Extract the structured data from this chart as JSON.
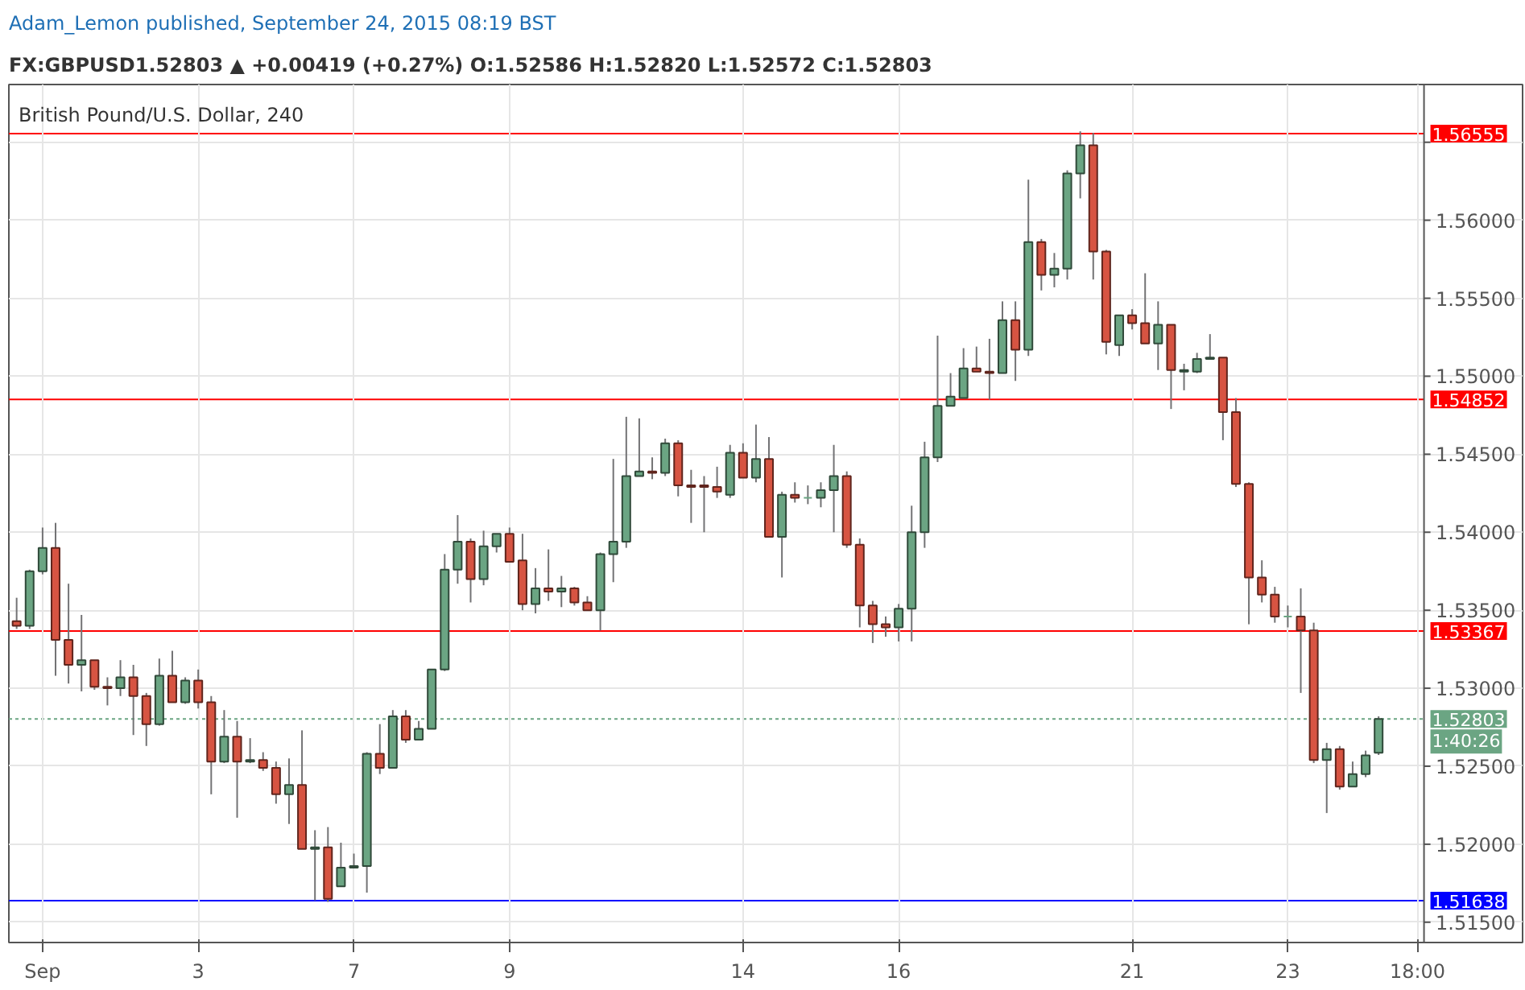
{
  "chart_data": {
    "type": "candlestick",
    "title": "Adam_Lemon published, September 24, 2015 08:19 BST",
    "subtitle": "FX:GBPUSD1.52803 ▲ +0.00419 (+0.27%) O:1.52586 H:1.52820 L:1.52572 C:1.52803",
    "annotations": [
      "British Pound/U.S. Dollar, 240",
      "1:40:26"
    ],
    "categories": [
      null,
      null,
      "Sep",
      null,
      null,
      null,
      null,
      null,
      null,
      null,
      null,
      null,
      null,
      null,
      "3",
      null,
      null,
      null,
      null,
      null,
      null,
      null,
      null,
      null,
      null,
      null,
      "7",
      null,
      null,
      null,
      null,
      null,
      null,
      null,
      null,
      null,
      null,
      null,
      "9",
      null,
      null,
      null,
      null,
      null,
      null,
      null,
      null,
      null,
      null,
      null,
      null,
      null,
      null,
      null,
      null,
      null,
      "14",
      null,
      null,
      null,
      null,
      null,
      null,
      null,
      null,
      null,
      null,
      null,
      "16",
      null,
      null,
      null,
      null,
      null,
      null,
      null,
      null,
      null,
      null,
      null,
      null,
      null,
      null,
      null,
      null,
      null,
      "21",
      null,
      null,
      null,
      null,
      null,
      null,
      null,
      null,
      null,
      null,
      null,
      "23",
      null,
      null,
      null,
      null,
      null,
      null,
      null,
      null,
      null,
      "18:00"
    ],
    "ohlc": [
      [
        1.5343,
        1.5358,
        1.5338,
        1.534
      ],
      [
        1.534,
        1.5376,
        1.5338,
        1.5375
      ],
      [
        1.5375,
        1.5403,
        1.5373,
        1.539
      ],
      [
        1.539,
        1.5406,
        1.5308,
        1.5331
      ],
      [
        1.5331,
        1.5367,
        1.5303,
        1.5315
      ],
      [
        1.5315,
        1.5347,
        1.5298,
        1.5318
      ],
      [
        1.5318,
        1.5318,
        1.5299,
        1.5301
      ],
      [
        1.5301,
        1.5307,
        1.5289,
        1.53
      ],
      [
        1.53,
        1.5318,
        1.5295,
        1.5307
      ],
      [
        1.5307,
        1.5315,
        1.527,
        1.5295
      ],
      [
        1.5295,
        1.5297,
        1.5263,
        1.5277
      ],
      [
        1.5277,
        1.5319,
        1.5276,
        1.5308
      ],
      [
        1.5308,
        1.5324,
        1.5291,
        1.5291
      ],
      [
        1.5291,
        1.5307,
        1.529,
        1.5305
      ],
      [
        1.5305,
        1.5312,
        1.5287,
        1.5291
      ],
      [
        1.5291,
        1.5295,
        1.5232,
        1.5253
      ],
      [
        1.5253,
        1.5286,
        1.5252,
        1.5269
      ],
      [
        1.5269,
        1.5279,
        1.5217,
        1.5253
      ],
      [
        1.5253,
        1.5268,
        1.5252,
        1.5254
      ],
      [
        1.5254,
        1.5259,
        1.5247,
        1.5249
      ],
      [
        1.5249,
        1.5253,
        1.5226,
        1.5232
      ],
      [
        1.5232,
        1.5255,
        1.5213,
        1.5238
      ],
      [
        1.5238,
        1.5273,
        1.5197,
        1.5197
      ],
      [
        1.5197,
        1.5209,
        1.5164,
        1.5198
      ],
      [
        1.5198,
        1.5211,
        1.5163,
        1.5165
      ],
      [
        1.5173,
        1.5201,
        1.5173,
        1.5185
      ],
      [
        1.5185,
        1.5194,
        1.5185,
        1.5186
      ],
      [
        1.5186,
        1.5259,
        1.5169,
        1.5258
      ],
      [
        1.5258,
        1.5277,
        1.5245,
        1.5249
      ],
      [
        1.5249,
        1.5286,
        1.5249,
        1.5282
      ],
      [
        1.5282,
        1.5286,
        1.5265,
        1.5267
      ],
      [
        1.5267,
        1.5279,
        1.5267,
        1.5274
      ],
      [
        1.5274,
        1.5312,
        1.5274,
        1.5312
      ],
      [
        1.5312,
        1.5386,
        1.5311,
        1.5376
      ],
      [
        1.5376,
        1.5411,
        1.5367,
        1.5394
      ],
      [
        1.5394,
        1.5396,
        1.5355,
        1.537
      ],
      [
        1.537,
        1.5401,
        1.5366,
        1.5391
      ],
      [
        1.5391,
        1.5399,
        1.5387,
        1.5399
      ],
      [
        1.5399,
        1.5403,
        1.5381,
        1.5381
      ],
      [
        1.5382,
        1.5399,
        1.535,
        1.5354
      ],
      [
        1.5354,
        1.5377,
        1.5348,
        1.5364
      ],
      [
        1.5364,
        1.5389,
        1.5356,
        1.5362
      ],
      [
        1.5362,
        1.5372,
        1.5352,
        1.5364
      ],
      [
        1.5364,
        1.5365,
        1.5353,
        1.5355
      ],
      [
        1.5355,
        1.5359,
        1.535,
        1.535
      ],
      [
        1.535,
        1.5387,
        1.5337,
        1.5386
      ],
      [
        1.5386,
        1.5447,
        1.5368,
        1.5394
      ],
      [
        1.5394,
        1.5474,
        1.539,
        1.5436
      ],
      [
        1.5436,
        1.5473,
        1.5436,
        1.5439
      ],
      [
        1.5439,
        1.5448,
        1.5434,
        1.5438
      ],
      [
        1.5438,
        1.546,
        1.5436,
        1.5457
      ],
      [
        1.5457,
        1.5459,
        1.5423,
        1.543
      ],
      [
        1.543,
        1.544,
        1.5406,
        1.5429
      ],
      [
        1.543,
        1.5436,
        1.54,
        1.5429
      ],
      [
        1.5429,
        1.5442,
        1.5422,
        1.5426
      ],
      [
        1.5424,
        1.5456,
        1.5422,
        1.5451
      ],
      [
        1.5451,
        1.5457,
        1.5435,
        1.5435
      ],
      [
        1.5435,
        1.5469,
        1.5432,
        1.5447
      ],
      [
        1.5447,
        1.5461,
        1.5397,
        1.5397
      ],
      [
        1.5397,
        1.5426,
        1.5371,
        1.5424
      ],
      [
        1.5424,
        1.5432,
        1.5419,
        1.5422
      ],
      [
        1.5422,
        1.543,
        1.5418,
        1.5422
      ],
      [
        1.5422,
        1.5432,
        1.5416,
        1.5427
      ],
      [
        1.5427,
        1.5456,
        1.54,
        1.5436
      ],
      [
        1.5436,
        1.5439,
        1.539,
        1.5392
      ],
      [
        1.5392,
        1.5396,
        1.5339,
        1.5353
      ],
      [
        1.5353,
        1.5356,
        1.5329,
        1.5341
      ],
      [
        1.5341,
        1.5346,
        1.5333,
        1.5339
      ],
      [
        1.5339,
        1.5354,
        1.533,
        1.5351
      ],
      [
        1.5351,
        1.5417,
        1.533,
        1.54
      ],
      [
        1.54,
        1.5458,
        1.539,
        1.5448
      ],
      [
        1.5448,
        1.5526,
        1.5445,
        1.5481
      ],
      [
        1.5481,
        1.5502,
        1.5481,
        1.5487
      ],
      [
        1.5486,
        1.5518,
        1.5486,
        1.5505
      ],
      [
        1.5505,
        1.5519,
        1.5503,
        1.5503
      ],
      [
        1.5503,
        1.5524,
        1.5485,
        1.5502
      ],
      [
        1.5502,
        1.5548,
        1.5502,
        1.5536
      ],
      [
        1.5536,
        1.5548,
        1.5497,
        1.5517
      ],
      [
        1.5517,
        1.5626,
        1.5513,
        1.5586
      ],
      [
        1.5586,
        1.5588,
        1.5555,
        1.5565
      ],
      [
        1.5565,
        1.5579,
        1.5557,
        1.5569
      ],
      [
        1.5569,
        1.5632,
        1.5562,
        1.563
      ],
      [
        1.563,
        1.5657,
        1.5614,
        1.5648
      ],
      [
        1.5648,
        1.5656,
        1.5562,
        1.558
      ],
      [
        1.558,
        1.5581,
        1.5514,
        1.5522
      ],
      [
        1.552,
        1.5539,
        1.5513,
        1.5539
      ],
      [
        1.5539,
        1.5543,
        1.553,
        1.5534
      ],
      [
        1.5534,
        1.5566,
        1.5521,
        1.5521
      ],
      [
        1.5521,
        1.5548,
        1.5504,
        1.5533
      ],
      [
        1.5533,
        1.5533,
        1.5479,
        1.5504
      ],
      [
        1.5503,
        1.5508,
        1.5491,
        1.5504
      ],
      [
        1.5503,
        1.5515,
        1.5502,
        1.5511
      ],
      [
        1.5511,
        1.5527,
        1.5511,
        1.5512
      ],
      [
        1.5512,
        1.5512,
        1.5459,
        1.5477
      ],
      [
        1.5477,
        1.5486,
        1.5429,
        1.5431
      ],
      [
        1.5431,
        1.5432,
        1.5341,
        1.5371
      ],
      [
        1.5371,
        1.5382,
        1.5355,
        1.536
      ],
      [
        1.536,
        1.5365,
        1.5342,
        1.5346
      ],
      [
        1.5346,
        1.5353,
        1.5339,
        1.5346
      ],
      [
        1.5346,
        1.5364,
        1.5297,
        1.5337
      ],
      [
        1.5337,
        1.5342,
        1.5252,
        1.5254
      ],
      [
        1.5254,
        1.5265,
        1.522,
        1.5261
      ],
      [
        1.5261,
        1.5263,
        1.5235,
        1.5237
      ],
      [
        1.5237,
        1.5253,
        1.5237,
        1.5245
      ],
      [
        1.5245,
        1.526,
        1.5243,
        1.5257
      ],
      [
        1.52586,
        1.5282,
        1.52572,
        1.52803
      ],
      null,
      null,
      null
    ],
    "colors": [
      "#d75442",
      "#6ba583",
      "#6ba583",
      "#d75442",
      "#d75442",
      "#6ba583",
      "#d75442",
      "#d75442",
      "#6ba583",
      "#d75442",
      "#d75442",
      "#6ba583",
      "#d75442",
      "#6ba583",
      "#d75442",
      "#d75442",
      "#6ba583",
      "#d75442",
      "#6ba583",
      "#d75442",
      "#d75442",
      "#6ba583",
      "#d75442",
      "#6ba583",
      "#d75442",
      "#6ba583",
      "#6ba583",
      "#6ba583",
      "#d75442",
      "#6ba583",
      "#d75442",
      "#6ba583",
      "#6ba583",
      "#6ba583",
      "#6ba583",
      "#d75442",
      "#6ba583",
      "#6ba583",
      "#d75442",
      "#d75442",
      "#6ba583",
      "#d75442",
      "#6ba583",
      "#d75442",
      "#d75442",
      "#6ba583",
      "#6ba583",
      "#6ba583",
      "#6ba583",
      "#d75442",
      "#6ba583",
      "#d75442",
      "#d75442",
      "#d75442",
      "#d75442",
      "#6ba583",
      "#d75442",
      "#6ba583",
      "#d75442",
      "#6ba583",
      "#d75442",
      "#6ba583",
      "#6ba583",
      "#6ba583",
      "#d75442",
      "#d75442",
      "#d75442",
      "#d75442",
      "#6ba583",
      "#6ba583",
      "#6ba583",
      "#6ba583",
      "#6ba583",
      "#6ba583",
      "#d75442",
      "#d75442",
      "#6ba583",
      "#d75442",
      "#6ba583",
      "#d75442",
      "#6ba583",
      "#6ba583",
      "#6ba583",
      "#d75442",
      "#d75442",
      "#6ba583",
      "#d75442",
      "#d75442",
      "#6ba583",
      "#d75442",
      "#6ba583",
      "#6ba583",
      "#6ba583",
      "#d75442",
      "#d75442",
      "#d75442",
      "#d75442",
      "#d75442",
      "#6ba583",
      "#d75442",
      "#d75442",
      "#6ba583",
      "#d75442",
      "#6ba583",
      "#6ba583",
      "#6ba583",
      null,
      null,
      null
    ],
    "ylim": [
      1.5137,
      1.5687
    ],
    "yticks": [
      {
        "value": 1.515,
        "label": "1.51500"
      },
      {
        "value": 1.52,
        "label": "1.52000"
      },
      {
        "value": 1.525,
        "label": "1.52500"
      },
      {
        "value": 1.53,
        "label": "1.53000"
      },
      {
        "value": 1.535,
        "label": "1.53500"
      },
      {
        "value": 1.54,
        "label": "1.54000"
      },
      {
        "value": 1.545,
        "label": "1.54500"
      },
      {
        "value": 1.55,
        "label": "1.55000"
      },
      {
        "value": 1.555,
        "label": "1.55500"
      },
      {
        "value": 1.56,
        "label": "1.56000"
      },
      {
        "value": 1.565,
        "label": null
      }
    ],
    "ref_lines": [
      {
        "axis": "y",
        "value": 1.56555,
        "label": "1.56555",
        "color": "#ff0000"
      },
      {
        "axis": "y",
        "value": 1.54852,
        "label": "1.54852",
        "color": "#ff0000"
      },
      {
        "axis": "y",
        "value": 1.53367,
        "label": "1.53367",
        "color": "#ff0000"
      },
      {
        "axis": "y",
        "value": 1.51638,
        "label": "1.51638",
        "color": "#0000ff"
      },
      {
        "axis": "y",
        "value": 1.52803,
        "label": "1.52803",
        "color": "#6ba583",
        "line_style": "dotted"
      }
    ],
    "grid": true
  }
}
